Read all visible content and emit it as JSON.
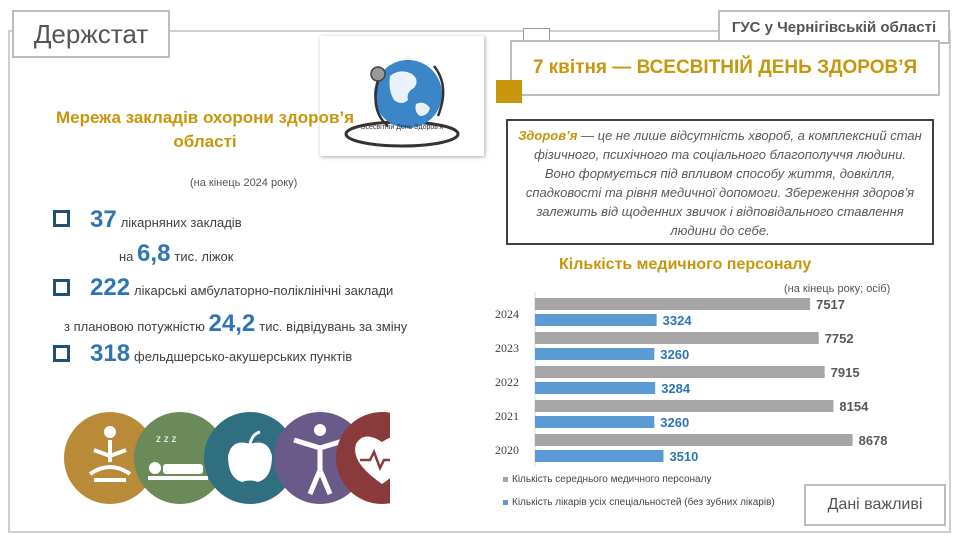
{
  "brand": "Держстат",
  "office": "ГУС у Чернігівській області",
  "headline": "7 квітня — ВСЕСВІТНІЙ ДЕНЬ ЗДОРОВ’Я",
  "logo_text": "Всесвітній День Здоров'я",
  "network": {
    "title": "Мережа закладів охорони здоров’я області",
    "note": "(на кінець 2024 року)",
    "hospitals_value": "37",
    "hospitals_label": "лікарняних закладів",
    "beds_prefix": "на",
    "beds_value": "6,8",
    "beds_label": "тис. ліжок",
    "clinics_value": "222",
    "clinics_label": "лікарські амбулаторно-поліклінічні заклади",
    "capacity_prefix": "з плановою потужністю",
    "capacity_value": "24,2",
    "capacity_label": "тис. відвідувань за зміну",
    "fap_value": "318",
    "fap_label": "фельдшерсько-акушерських пунктів"
  },
  "definition": {
    "term": "Здоров’я",
    "text": " — це не лише відсутність хвороб, а комплексний стан фізичного, психічного та соціального благополуччя людини. Воно формується під впливом способу життя, довкілля, спадковості та рівня медичної допомоги. Збереження здоров’я залежить від щоденних звичок і відповідального ставлення людини до себе."
  },
  "icons": [
    "yoga-icon",
    "sleep-icon",
    "apple-icon",
    "body-icon",
    "heartbeat-icon"
  ],
  "colors": {
    "accent": "#c8960c",
    "blue": "#2e75b6",
    "gray": "#a6a6a6"
  },
  "important": "Дані важливі",
  "chart_data": {
    "type": "bar",
    "orientation": "horizontal",
    "title": "Кількість медичного персоналу",
    "note": "(на кінець року; осіб)",
    "categories": [
      "2024",
      "2023",
      "2022",
      "2021",
      "2020"
    ],
    "series": [
      {
        "name": "Кількість середнього медичного персоналу",
        "color": "#a6a6a6",
        "values": [
          7517,
          7752,
          7915,
          8154,
          8678
        ]
      },
      {
        "name": "Кількість лікарів усіх спеціальностей (без зубних лікарів)",
        "color": "#5b9bd5",
        "values": [
          3324,
          3260,
          3284,
          3260,
          3510
        ]
      }
    ],
    "xlim": [
      0,
      9700
    ],
    "grid": false,
    "legend": "bottom"
  }
}
